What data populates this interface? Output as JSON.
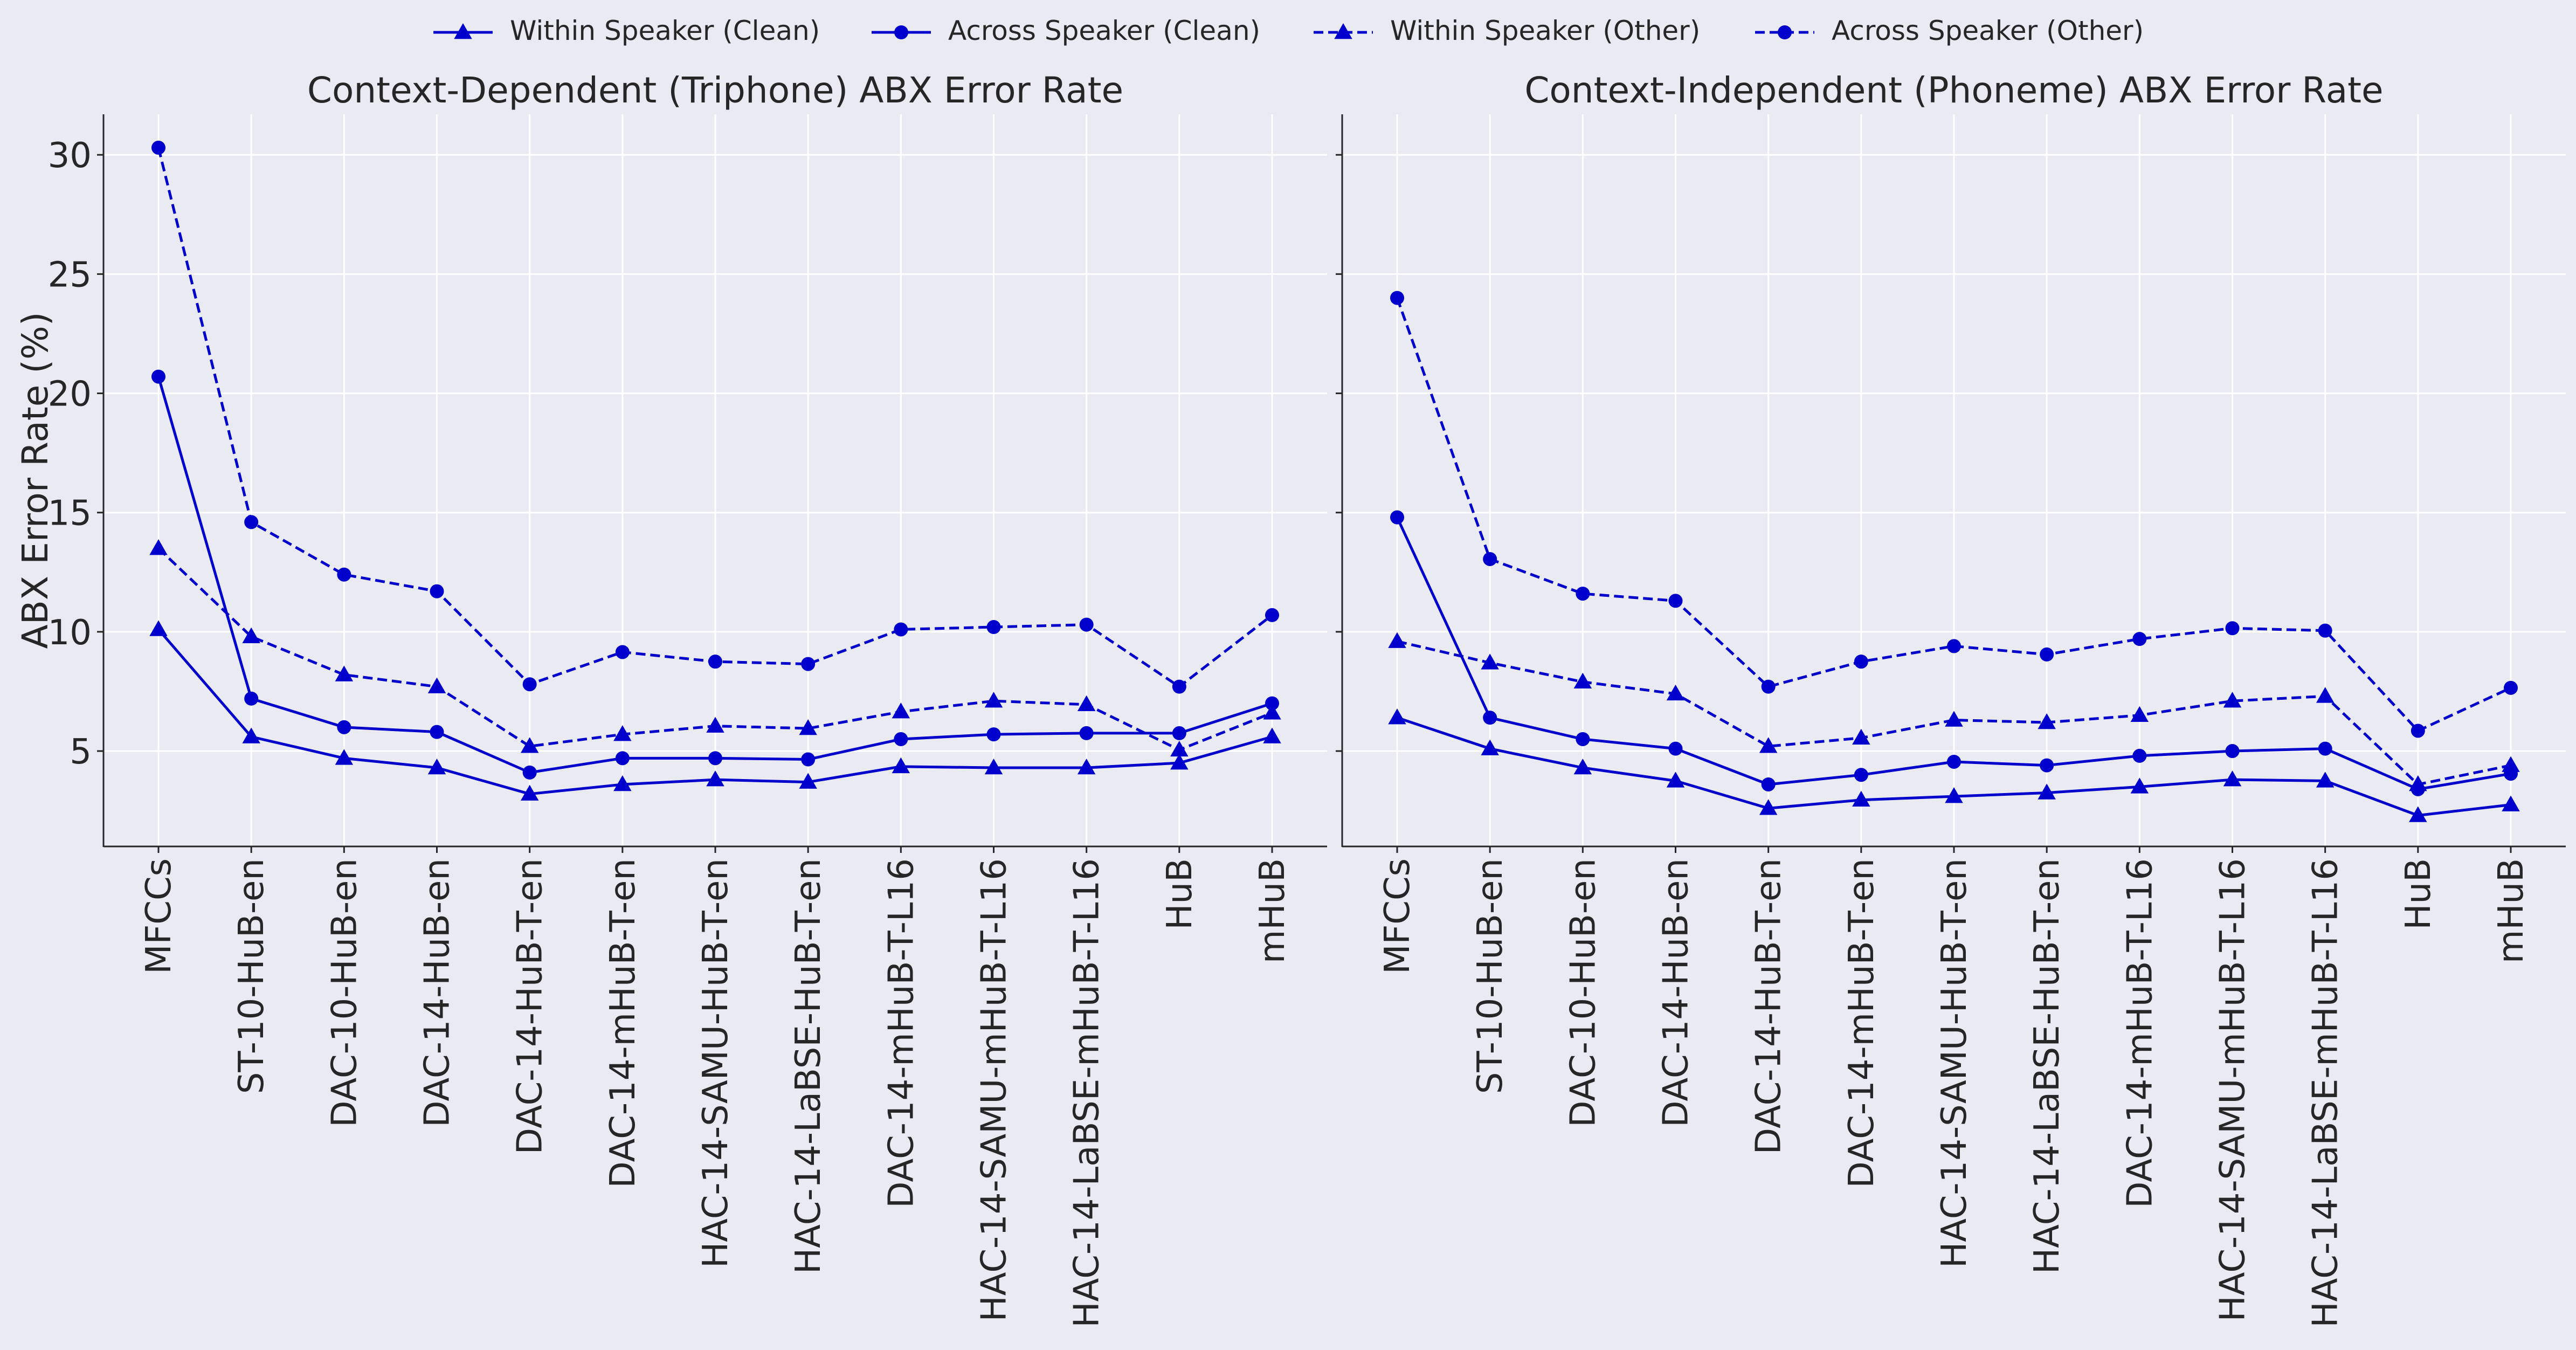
{
  "figure": {
    "legend_position": "top-center",
    "legend": [
      {
        "label": "Within Speaker (Clean)",
        "marker": "triangle",
        "dash": "solid"
      },
      {
        "label": "Across Speaker (Clean)",
        "marker": "circle",
        "dash": "solid"
      },
      {
        "label": "Within Speaker (Other)",
        "marker": "triangle",
        "dash": "dashed"
      },
      {
        "label": "Across Speaker (Other)",
        "marker": "circle",
        "dash": "dashed"
      }
    ],
    "colors": {
      "line": "#0000cc",
      "background": "#eaeaf2",
      "grid": "#ffffff",
      "axis": "#262626"
    }
  },
  "chart_data": [
    {
      "type": "line",
      "title": "Context-Dependent (Triphone) ABX Error Rate",
      "xlabel": "",
      "ylabel": "ABX Error Rate (%)",
      "ylim": [
        1,
        31.7
      ],
      "yticks": [
        5,
        10,
        15,
        20,
        25,
        30
      ],
      "grid": true,
      "categories": [
        "MFCCs",
        "ST-10-HuB-en",
        "DAC-10-HuB-en",
        "DAC-14-HuB-en",
        "DAC-14-HuB-T-en",
        "DAC-14-mHuB-T-en",
        "HAC-14-SAMU-HuB-T-en",
        "HAC-14-LaBSE-HuB-T-en",
        "DAC-14-mHuB-T-L16",
        "HAC-14-SAMU-mHuB-T-L16",
        "HAC-14-LaBSE-mHuB-T-L16",
        "HuB",
        "mHuB"
      ],
      "series": [
        {
          "name": "Within Speaker (Clean)",
          "marker": "triangle",
          "dash": "solid",
          "values": [
            10.1,
            5.6,
            4.7,
            4.3,
            3.2,
            3.6,
            3.8,
            3.7,
            4.35,
            4.3,
            4.3,
            4.5,
            5.6
          ]
        },
        {
          "name": "Across Speaker (Clean)",
          "marker": "circle",
          "dash": "solid",
          "values": [
            20.7,
            7.2,
            6.0,
            5.8,
            4.1,
            4.7,
            4.7,
            4.65,
            5.5,
            5.7,
            5.75,
            5.75,
            7.0
          ]
        },
        {
          "name": "Within Speaker (Other)",
          "marker": "triangle",
          "dash": "dashed",
          "values": [
            13.5,
            9.8,
            8.2,
            7.7,
            5.2,
            5.7,
            6.05,
            5.95,
            6.65,
            7.1,
            6.95,
            5.05,
            6.6
          ]
        },
        {
          "name": "Across Speaker (Other)",
          "marker": "circle",
          "dash": "dashed",
          "values": [
            30.3,
            14.6,
            12.4,
            11.7,
            7.8,
            9.15,
            8.75,
            8.65,
            10.1,
            10.2,
            10.3,
            7.7,
            10.7
          ]
        }
      ]
    },
    {
      "type": "line",
      "title": "Context-Independent (Phoneme) ABX Error Rate",
      "xlabel": "",
      "ylabel": "",
      "ylim": [
        1,
        31.7
      ],
      "yticks": [
        5,
        10,
        15,
        20,
        25,
        30
      ],
      "grid": true,
      "categories": [
        "MFCCs",
        "ST-10-HuB-en",
        "DAC-10-HuB-en",
        "DAC-14-HuB-en",
        "DAC-14-HuB-T-en",
        "DAC-14-mHuB-T-en",
        "HAC-14-SAMU-HuB-T-en",
        "HAC-14-LaBSE-HuB-T-en",
        "DAC-14-mHuB-T-L16",
        "HAC-14-SAMU-mHuB-T-L16",
        "HAC-14-LaBSE-mHuB-T-L16",
        "HuB",
        "mHuB"
      ],
      "series": [
        {
          "name": "Within Speaker (Clean)",
          "marker": "triangle",
          "dash": "solid",
          "values": [
            6.4,
            5.1,
            4.3,
            3.75,
            2.6,
            2.95,
            3.1,
            3.25,
            3.5,
            3.8,
            3.75,
            2.3,
            2.75
          ]
        },
        {
          "name": "Across Speaker (Clean)",
          "marker": "circle",
          "dash": "solid",
          "values": [
            14.8,
            6.4,
            5.5,
            5.1,
            3.6,
            4.0,
            4.55,
            4.4,
            4.8,
            5.0,
            5.1,
            3.4,
            4.05
          ]
        },
        {
          "name": "Within Speaker (Other)",
          "marker": "triangle",
          "dash": "dashed",
          "values": [
            9.6,
            8.7,
            7.9,
            7.4,
            5.2,
            5.55,
            6.3,
            6.2,
            6.5,
            7.1,
            7.3,
            3.6,
            4.4
          ]
        },
        {
          "name": "Across Speaker (Other)",
          "marker": "circle",
          "dash": "dashed",
          "values": [
            24.0,
            13.05,
            11.6,
            11.3,
            7.7,
            8.75,
            9.4,
            9.05,
            9.7,
            10.15,
            10.05,
            5.85,
            7.65
          ]
        }
      ]
    }
  ]
}
